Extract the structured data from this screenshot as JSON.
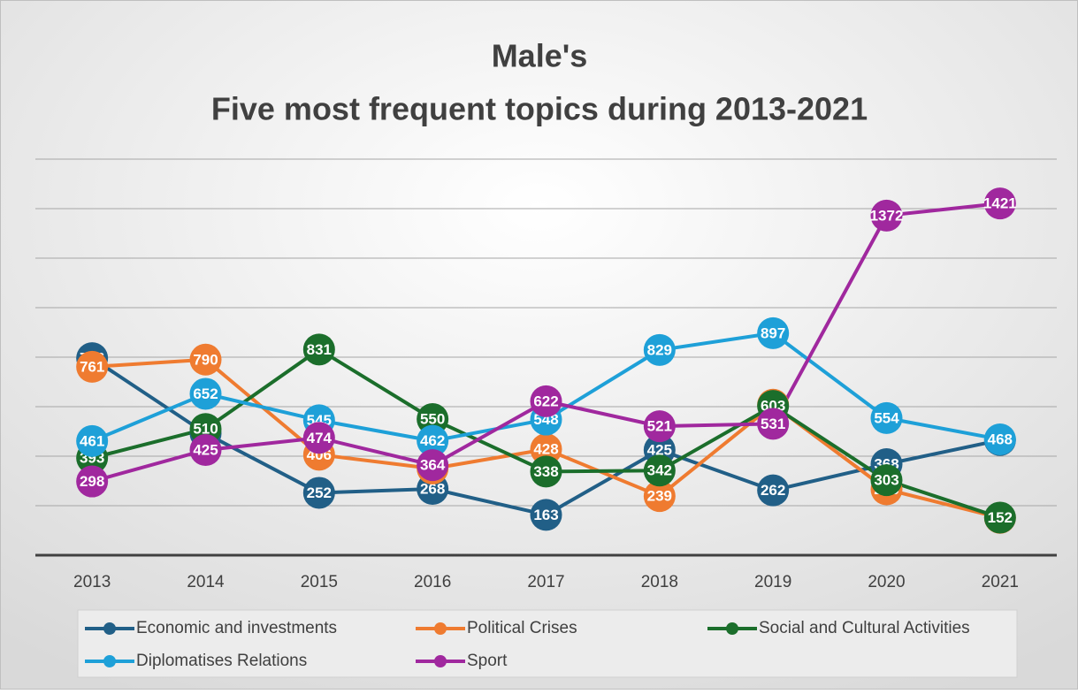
{
  "chart_data": {
    "type": "line",
    "title": "Male's",
    "subtitle": "Five most frequent topics during 2013-2021",
    "categories": [
      "2013",
      "2014",
      "2015",
      "2016",
      "2017",
      "2018",
      "2019",
      "2020",
      "2021"
    ],
    "series": [
      {
        "name": "Economic and investments",
        "color": "#215f87",
        "values": [
          796,
          492,
          252,
          268,
          163,
          425,
          262,
          368,
          465
        ]
      },
      {
        "name": "Political Crises",
        "color": "#ef7b30",
        "values": [
          761,
          790,
          406,
          350,
          428,
          239,
          608,
          266,
          151
        ]
      },
      {
        "name": "Social and Cultural Activities",
        "color": "#1b6e2b",
        "values": [
          393,
          510,
          831,
          550,
          338,
          342,
          603,
          303,
          152
        ]
      },
      {
        "name": "Diplomatises Relations",
        "color": "#1ea0d8",
        "values": [
          461,
          652,
          545,
          462,
          548,
          829,
          897,
          554,
          468
        ]
      },
      {
        "name": "Sport",
        "color": "#a0289e",
        "values": [
          298,
          425,
          474,
          364,
          622,
          521,
          531,
          1372,
          1421
        ]
      }
    ],
    "ylim": [
      0,
      1600
    ],
    "yticks": [
      0,
      200,
      400,
      600,
      800,
      1000,
      1200,
      1400,
      1600
    ],
    "grid": true,
    "legend": "bottom"
  }
}
